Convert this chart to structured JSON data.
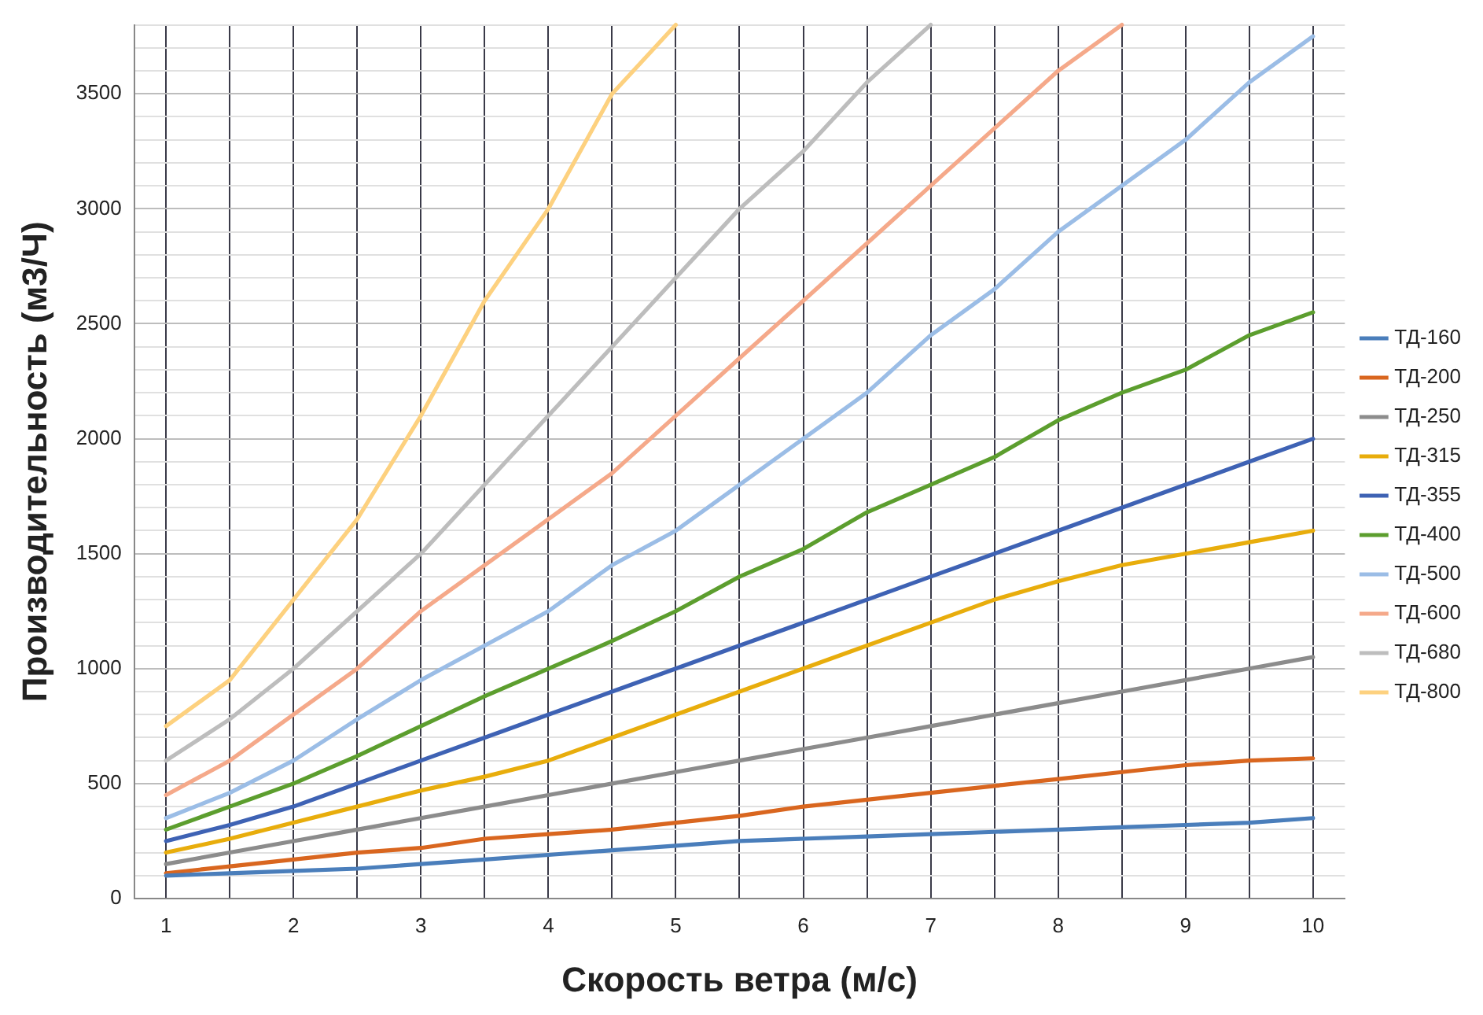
{
  "chart_data": {
    "type": "line",
    "xlabel": "Скорость ветра (м/с)",
    "ylabel": "Производительность (м3/Ч)",
    "x": [
      1,
      1.5,
      2,
      2.5,
      3,
      3.5,
      4,
      4.5,
      5,
      5.5,
      6,
      6.5,
      7,
      7.5,
      8,
      8.5,
      9,
      9.5,
      10
    ],
    "xlim": [
      0.75,
      10.25
    ],
    "xticks": [
      1,
      {
        "value": 1.5,
        "label": null
      },
      2,
      {
        "value": 2.5,
        "label": null
      },
      3,
      {
        "value": 3.5,
        "label": null
      },
      4,
      {
        "value": 4.5,
        "label": null
      },
      5,
      {
        "value": 5.5,
        "label": null
      },
      6,
      {
        "value": 6.5,
        "label": null
      },
      7,
      {
        "value": 7.5,
        "label": null
      },
      8,
      {
        "value": 8.5,
        "label": null
      },
      9,
      {
        "value": 9.5,
        "label": null
      },
      10
    ],
    "ylim": [
      0,
      3800
    ],
    "yticks": [
      0,
      {
        "value": 100,
        "label": null
      },
      {
        "value": 200,
        "label": null
      },
      {
        "value": 300,
        "label": null
      },
      {
        "value": 400,
        "label": null
      },
      500,
      {
        "value": 600,
        "label": null
      },
      {
        "value": 700,
        "label": null
      },
      {
        "value": 800,
        "label": null
      },
      {
        "value": 900,
        "label": null
      },
      1000,
      {
        "value": 1100,
        "label": null
      },
      {
        "value": 1200,
        "label": null
      },
      {
        "value": 1300,
        "label": null
      },
      {
        "value": 1400,
        "label": null
      },
      1500,
      {
        "value": 1600,
        "label": null
      },
      {
        "value": 1700,
        "label": null
      },
      {
        "value": 1800,
        "label": null
      },
      {
        "value": 1900,
        "label": null
      },
      2000,
      {
        "value": 2100,
        "label": null
      },
      {
        "value": 2200,
        "label": null
      },
      {
        "value": 2300,
        "label": null
      },
      {
        "value": 2400,
        "label": null
      },
      2500,
      {
        "value": 2600,
        "label": null
      },
      {
        "value": 2700,
        "label": null
      },
      {
        "value": 2800,
        "label": null
      },
      {
        "value": 2900,
        "label": null
      },
      3000,
      {
        "value": 3100,
        "label": null
      },
      {
        "value": 3200,
        "label": null
      },
      {
        "value": 3300,
        "label": null
      },
      {
        "value": 3400,
        "label": null
      },
      3500,
      {
        "value": 3600,
        "label": null
      },
      {
        "value": 3700,
        "label": null
      },
      {
        "value": 3800,
        "label": null
      }
    ],
    "grid": true,
    "legend": "right",
    "marker": "none",
    "line_style": "solid",
    "series": [
      {
        "name": "ТД-160",
        "color": "#4a7ebb",
        "values": [
          100,
          110,
          120,
          130,
          150,
          170,
          190,
          210,
          230,
          250,
          260,
          270,
          280,
          290,
          300,
          310,
          320,
          330,
          350
        ]
      },
      {
        "name": "ТД-200",
        "color": "#d9661f",
        "values": [
          110,
          140,
          170,
          200,
          220,
          260,
          280,
          300,
          330,
          360,
          400,
          430,
          460,
          490,
          520,
          550,
          580,
          600,
          610
        ]
      },
      {
        "name": "ТД-250",
        "color": "#8c8c8c",
        "values": [
          150,
          200,
          250,
          300,
          350,
          400,
          450,
          500,
          550,
          600,
          650,
          700,
          750,
          800,
          850,
          900,
          950,
          1000,
          1050
        ]
      },
      {
        "name": "ТД-315",
        "color": "#e8ad0c",
        "values": [
          200,
          260,
          330,
          400,
          470,
          530,
          600,
          700,
          800,
          900,
          1000,
          1100,
          1200,
          1300,
          1380,
          1450,
          1500,
          1550,
          1600
        ]
      },
      {
        "name": "ТД-355",
        "color": "#3e62b4",
        "values": [
          250,
          320,
          400,
          500,
          600,
          700,
          800,
          900,
          1000,
          1100,
          1200,
          1300,
          1400,
          1500,
          1600,
          1700,
          1800,
          1900,
          2000
        ]
      },
      {
        "name": "ТД-400",
        "color": "#5c9e2e",
        "values": [
          300,
          400,
          500,
          620,
          750,
          880,
          1000,
          1120,
          1250,
          1400,
          1520,
          1680,
          1800,
          1920,
          2080,
          2200,
          2300,
          2450,
          2550
        ]
      },
      {
        "name": "ТД-500",
        "color": "#9bbde6",
        "values": [
          350,
          460,
          600,
          780,
          950,
          1100,
          1250,
          1450,
          1600,
          1800,
          2000,
          2200,
          2450,
          2650,
          2900,
          3100,
          3300,
          3550,
          3750
        ]
      },
      {
        "name": "ТД-600",
        "color": "#f5a98a",
        "values": [
          450,
          600,
          800,
          1000,
          1250,
          1450,
          1650,
          1850,
          2100,
          2350,
          2600,
          2850,
          3100,
          3350,
          3600,
          3800,
          null,
          null,
          null
        ]
      },
      {
        "name": "ТД-680",
        "color": "#bdbdbd",
        "values": [
          600,
          780,
          1000,
          1250,
          1500,
          1800,
          2100,
          2400,
          2700,
          3000,
          3250,
          3550,
          3800,
          null,
          null,
          null,
          null,
          null,
          null
        ]
      },
      {
        "name": "ТД-800",
        "color": "#fdd17f",
        "values": [
          750,
          950,
          1300,
          1650,
          2100,
          2600,
          3000,
          3500,
          3800,
          null,
          null,
          null,
          null,
          null,
          null,
          null,
          null,
          null,
          null
        ]
      }
    ]
  }
}
